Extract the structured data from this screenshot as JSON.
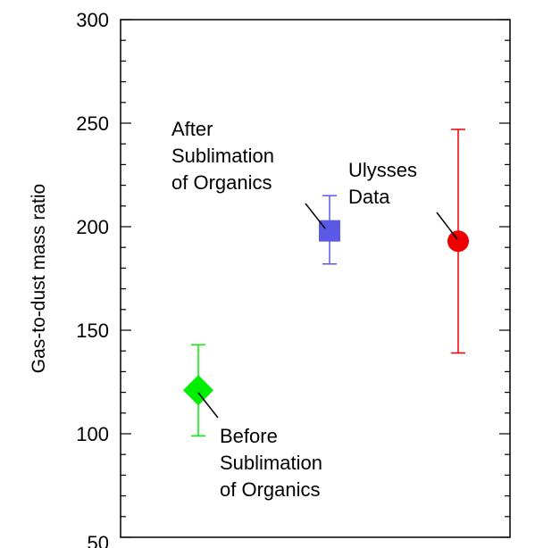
{
  "chart_data": {
    "type": "scatter",
    "title": "",
    "xlabel": "",
    "ylabel": "Gas-to-dust mass ratio",
    "ylim": [
      50,
      300
    ],
    "yticks": [
      "50",
      "100",
      "150",
      "200",
      "250",
      "300"
    ],
    "grid": false,
    "points": [
      {
        "label_lines": [
          "Before",
          "Sublimation",
          "of Organics"
        ],
        "marker": "diamond",
        "color": "#00ee00",
        "y": 121,
        "err_low": 99,
        "err_high": 143
      },
      {
        "label_lines": [
          "After",
          "Sublimation",
          "of Organics"
        ],
        "marker": "square",
        "color": "#5a5ae6",
        "y": 198,
        "err_low": 182,
        "err_high": 215
      },
      {
        "label_lines": [
          "Ulysses",
          "Data"
        ],
        "marker": "circle",
        "color": "#ee0000",
        "y": 193,
        "err_low": 139,
        "err_high": 247
      }
    ]
  }
}
